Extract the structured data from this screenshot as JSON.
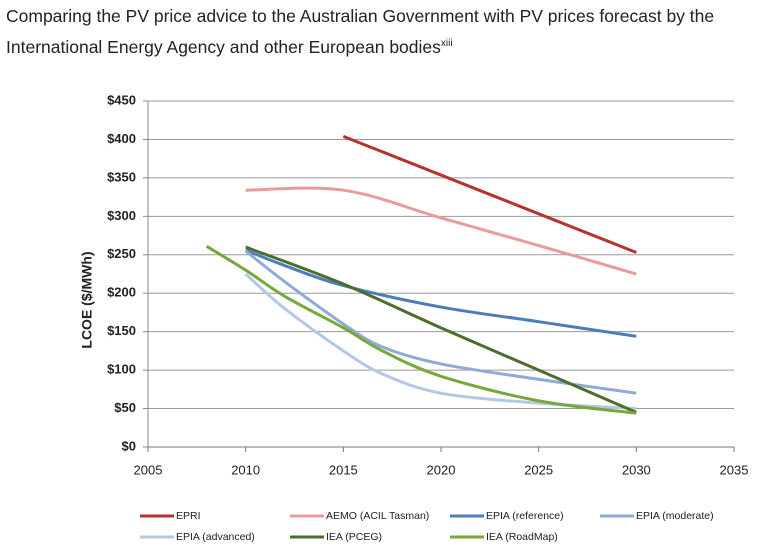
{
  "chart_data": {
    "type": "line",
    "title": "Comparing the PV price advice to the Australian Government with PV prices forecast by the International Energy Agency and other European bodies",
    "title_note": "xiii",
    "y_label": "LCOE ($/MWh)",
    "xlim": [
      2005,
      2035
    ],
    "xticks": [
      2005,
      2010,
      2015,
      2020,
      2025,
      2030,
      2035
    ],
    "ylim": [
      0,
      450
    ],
    "yticks": [
      {
        "value": 0,
        "label": "$0"
      },
      {
        "value": 50,
        "label": "$50"
      },
      {
        "value": 100,
        "label": "$100"
      },
      {
        "value": 150,
        "label": "$150"
      },
      {
        "value": 200,
        "label": "$200"
      },
      {
        "value": 250,
        "label": "$250"
      },
      {
        "value": 300,
        "label": "$300"
      },
      {
        "value": 350,
        "label": "$350"
      },
      {
        "value": 400,
        "label": "$400"
      },
      {
        "value": 450,
        "label": "$450"
      }
    ],
    "grid": true,
    "series": [
      {
        "name": "EPRI",
        "color": "#b8312f",
        "x": [
          2015,
          2030
        ],
        "values": [
          404,
          253
        ]
      },
      {
        "name": "AEMO (ACIL Tasman)",
        "color": "#ec9a9a",
        "x": [
          2010,
          2015,
          2020,
          2025,
          2030
        ],
        "values": [
          334,
          334,
          298,
          262,
          225
        ]
      },
      {
        "name": "EPIA (reference)",
        "color": "#4a7ebb",
        "x": [
          2010,
          2012,
          2015,
          2020,
          2025,
          2030
        ],
        "values": [
          256,
          236,
          210,
          182,
          163,
          144
        ]
      },
      {
        "name": "EPIA (moderate)",
        "color": "#8eaadb",
        "x": [
          2010,
          2012,
          2015,
          2017,
          2020,
          2025,
          2030
        ],
        "values": [
          255,
          215,
          160,
          130,
          108,
          88,
          70
        ]
      },
      {
        "name": "EPIA (advanced)",
        "color": "#b4c7e7",
        "x": [
          2010,
          2012,
          2015,
          2017,
          2020,
          2025,
          2030
        ],
        "values": [
          225,
          180,
          125,
          95,
          70,
          57,
          50
        ]
      },
      {
        "name": "IEA (PCEG)",
        "color": "#4f6d2a",
        "x": [
          2010,
          2015,
          2020,
          2025,
          2030
        ],
        "values": [
          260,
          212,
          155,
          100,
          45
        ]
      },
      {
        "name": "IEA (RoadMap)",
        "color": "#77a83a",
        "x": [
          2008,
          2010,
          2012,
          2015,
          2017,
          2020,
          2025,
          2030
        ],
        "values": [
          261,
          230,
          196,
          155,
          125,
          92,
          60,
          44
        ]
      }
    ]
  }
}
